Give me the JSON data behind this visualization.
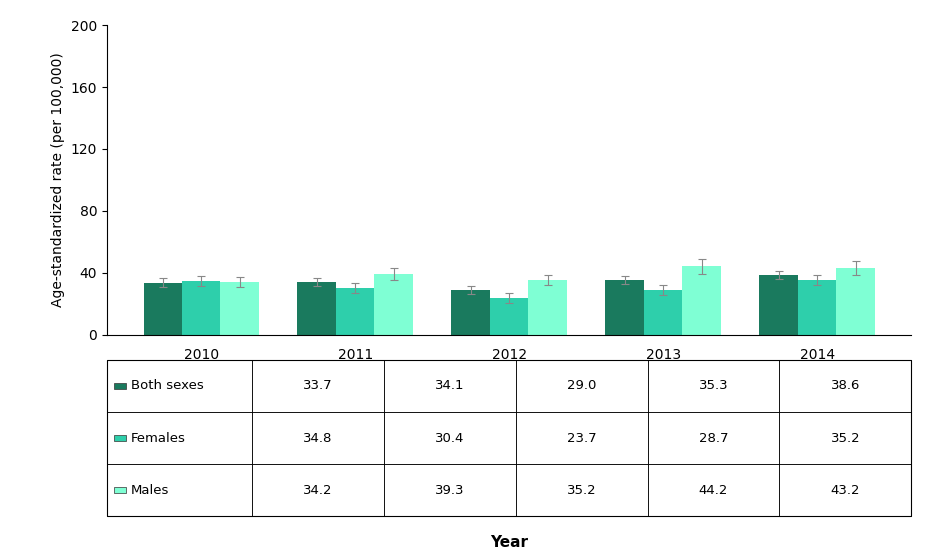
{
  "years": [
    "2010",
    "2011",
    "2012",
    "2013",
    "2014"
  ],
  "both_sexes": [
    33.7,
    34.1,
    29.0,
    35.3,
    38.6
  ],
  "females": [
    34.8,
    30.4,
    23.7,
    28.7,
    35.2
  ],
  "males": [
    34.2,
    39.3,
    35.2,
    44.2,
    43.2
  ],
  "both_sexes_err": [
    2.8,
    2.8,
    2.8,
    2.8,
    2.8
  ],
  "females_err": [
    3.2,
    3.2,
    3.2,
    3.2,
    3.2
  ],
  "males_err": [
    3.2,
    4.0,
    3.2,
    5.0,
    4.5
  ],
  "color_both": "#1a7a5e",
  "color_females": "#2ecfab",
  "color_males": "#7fffd4",
  "ylabel": "Age-standardized rate (per 100,000)",
  "xlabel": "Year",
  "ylim": [
    0,
    200
  ],
  "yticks": [
    0,
    40,
    80,
    120,
    160,
    200
  ],
  "bar_width": 0.25,
  "legend_labels": [
    "Both sexes",
    "Females",
    "Males"
  ],
  "table_data": [
    [
      "Both sexes",
      "33.7",
      "34.1",
      "29.0",
      "35.3",
      "38.6"
    ],
    [
      "Females",
      "34.8",
      "30.4",
      "23.7",
      "28.7",
      "35.2"
    ],
    [
      "Males",
      "34.2",
      "39.3",
      "35.2",
      "44.2",
      "43.2"
    ]
  ]
}
